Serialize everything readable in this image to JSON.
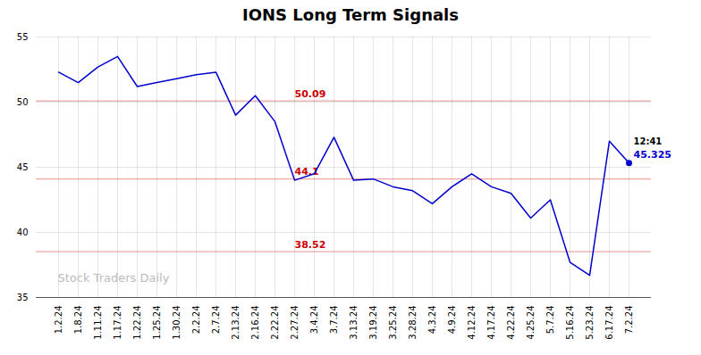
{
  "chart_data": {
    "type": "line",
    "title": "IONS Long Term Signals",
    "categories": [
      "1.2.24",
      "1.8.24",
      "1.11.24",
      "1.17.24",
      "1.22.24",
      "1.25.24",
      "1.30.24",
      "2.2.24",
      "2.7.24",
      "2.13.24",
      "2.16.24",
      "2.22.24",
      "2.27.24",
      "3.4.24",
      "3.7.24",
      "3.13.24",
      "3.19.24",
      "3.25.24",
      "3.28.24",
      "4.3.24",
      "4.9.24",
      "4.12.24",
      "4.17.24",
      "4.22.24",
      "4.25.24",
      "5.7.24",
      "5.16.24",
      "5.23.24",
      "6.17.24",
      "7.2.24"
    ],
    "values": [
      52.3,
      51.5,
      52.7,
      53.5,
      51.2,
      51.5,
      51.8,
      52.1,
      52.3,
      49.0,
      50.5,
      48.5,
      44.0,
      44.5,
      47.3,
      44.0,
      44.1,
      43.5,
      43.2,
      42.2,
      43.5,
      44.5,
      43.5,
      43.0,
      41.1,
      42.5,
      37.7,
      36.7,
      47.0,
      45.325
    ],
    "color": "#0000cc",
    "ylim": [
      35,
      55
    ],
    "yticks": [
      35,
      40,
      45,
      50,
      55
    ],
    "grid": true,
    "hlines": [
      {
        "value": 50.09,
        "label": "50.09",
        "color": "#cc0000"
      },
      {
        "value": 44.1,
        "label": "44.1",
        "color": "#cc0000"
      },
      {
        "value": 38.52,
        "label": "38.52",
        "color": "#cc0000"
      }
    ],
    "annotations": [
      {
        "text": "12:41"
      },
      {
        "text": "45.325",
        "color": "#0000cc"
      }
    ],
    "watermark": "Stock Traders Daily"
  }
}
